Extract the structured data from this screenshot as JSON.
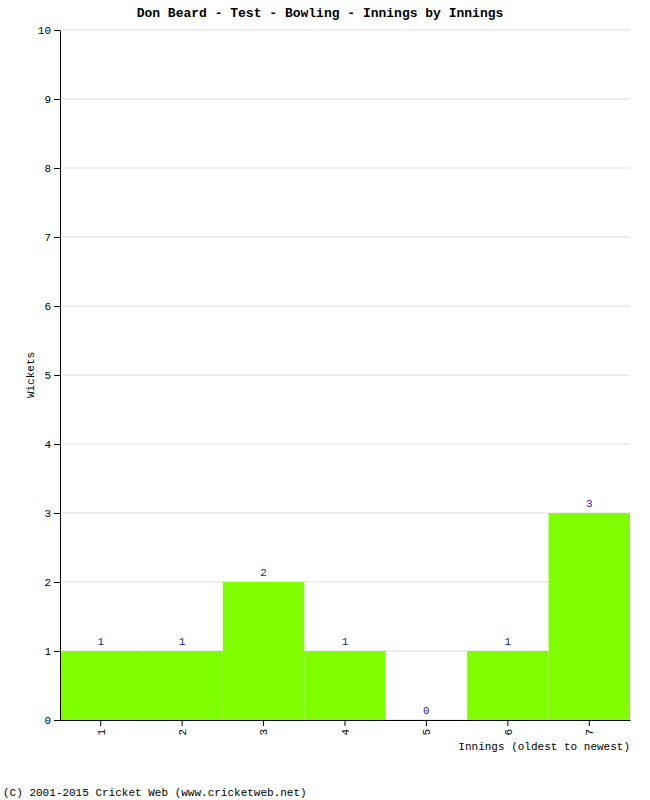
{
  "chart_data": {
    "type": "bar",
    "title": "Don Beard - Test - Bowling - Innings by Innings",
    "categories": [
      "1",
      "2",
      "3",
      "4",
      "5",
      "6",
      "7"
    ],
    "values": [
      1,
      1,
      2,
      1,
      0,
      1,
      3
    ],
    "color": "#80ff00",
    "ylim": [
      0,
      10
    ],
    "yticks": [
      0,
      1,
      2,
      3,
      4,
      5,
      6,
      7,
      8,
      9,
      10
    ],
    "grid": true,
    "data_labels": true,
    "xlabel": "Innings (oldest to newest)",
    "ylabel": "Wickets",
    "footer": "(C) 2001-2015 Cricket Web (www.cricketweb.net)"
  }
}
